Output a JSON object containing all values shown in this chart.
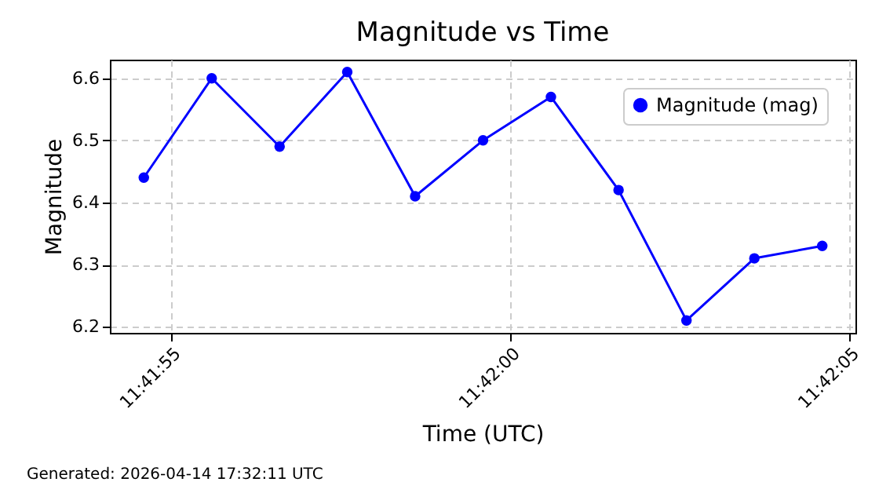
{
  "chart_data": {
    "type": "line",
    "title": "Magnitude vs Time",
    "xlabel": "Time (UTC)",
    "ylabel": "Magnitude",
    "x": [
      11.6985,
      11.698778,
      11.699056,
      11.699333,
      11.699611,
      11.699889,
      11.700167,
      11.700444,
      11.700722,
      11.701,
      11.701278
    ],
    "series": [
      {
        "name": "Magnitude (mag)",
        "color": "#0000ff",
        "values": [
          6.44,
          6.6,
          6.49,
          6.61,
          6.41,
          6.5,
          6.57,
          6.42,
          6.21,
          6.31,
          6.33
        ]
      }
    ],
    "xlim": [
      11.698361,
      11.701414
    ],
    "xticks": [
      {
        "value": 11.698611,
        "label": "11:41:55"
      },
      {
        "value": 11.7,
        "label": "11:42:00"
      },
      {
        "value": 11.701389,
        "label": "11:42:05"
      }
    ],
    "ylim": [
      6.19,
      6.63
    ],
    "yticks": [
      6.2,
      6.3,
      6.4,
      6.5,
      6.6
    ],
    "grid": true,
    "legend": "top right",
    "marker": "circle",
    "line_style": "solid",
    "annotations": [
      "Generated: 2026-04-14 17:32:11 UTC"
    ]
  }
}
